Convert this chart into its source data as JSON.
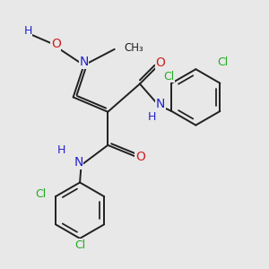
{
  "bg_color": "#e8e8e8",
  "bond_color": "#202020",
  "N_color": "#2222cc",
  "O_color": "#cc2222",
  "Cl_color": "#22aa22",
  "fig_size": [
    3.0,
    3.0
  ],
  "dpi": 100,
  "xlim": [
    0,
    10
  ],
  "ylim": [
    0,
    10
  ]
}
